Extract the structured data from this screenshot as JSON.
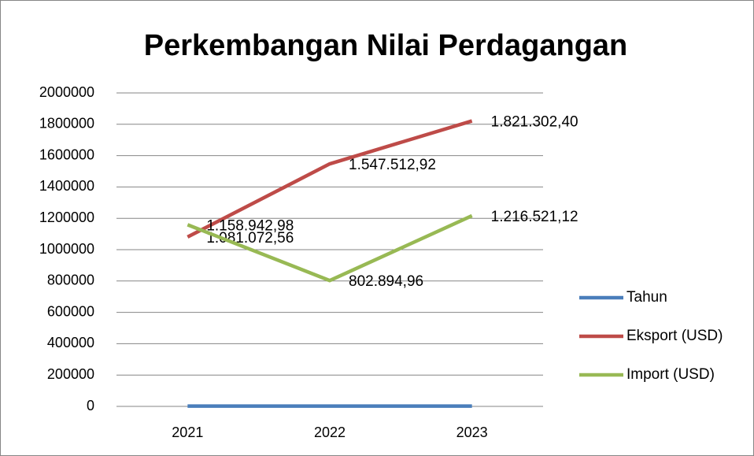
{
  "chart_data": {
    "type": "line",
    "title": "Perkembangan Nilai Perdagangan",
    "categories": [
      "2021",
      "2022",
      "2023"
    ],
    "series": [
      {
        "name": "Tahun",
        "color": "#4a7ebb",
        "values": [
          2021,
          2022,
          2023
        ]
      },
      {
        "name": "Eksport (USD)",
        "color": "#be4b48",
        "values": [
          1081072.56,
          1547512.92,
          1821302.4
        ],
        "value_labels": [
          "1.081.072,56",
          "1.547.512,92",
          "1.821.302,40"
        ]
      },
      {
        "name": "Import (USD)",
        "color": "#98b954",
        "values": [
          1158942.98,
          802894.96,
          1216521.12
        ],
        "value_labels": [
          "1.158.942,98",
          "802.894,96",
          "1.216.521,12"
        ]
      }
    ],
    "ylim": [
      0,
      2000000
    ],
    "yticks": [
      0,
      200000,
      400000,
      600000,
      800000,
      1000000,
      1200000,
      1400000,
      1600000,
      1800000,
      2000000
    ],
    "grid": true,
    "legend": "right"
  }
}
